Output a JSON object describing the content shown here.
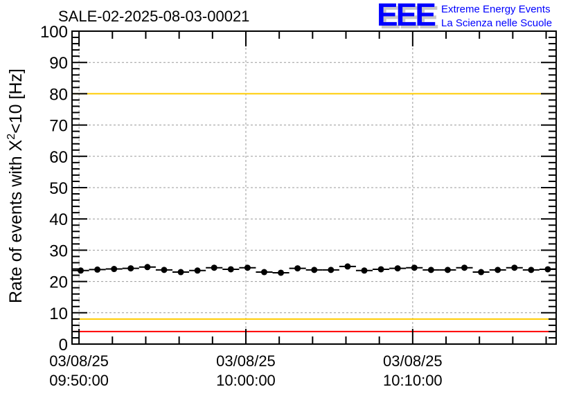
{
  "chart_data": {
    "type": "scatter",
    "title": "SALE-02-2025-08-03-00021",
    "ylabel": "Rate of events with X",
    "ylabel_sup": "2",
    "ylabel_tail": "<10 [Hz]",
    "xlabel": "",
    "ylim": [
      0,
      100
    ],
    "xlim_minutes_from_0950": [
      -0.42,
      28.6
    ],
    "y_ticks": [
      "0",
      "10",
      "20",
      "30",
      "40",
      "50",
      "60",
      "70",
      "80",
      "90",
      "100"
    ],
    "y_tick_values": [
      0,
      10,
      20,
      30,
      40,
      50,
      60,
      70,
      80,
      90,
      100
    ],
    "x_ticks": [
      {
        "minutes": 0,
        "date": "03/08/25",
        "time": "09:50:00"
      },
      {
        "minutes": 10,
        "date": "03/08/25",
        "time": "10:00:00"
      },
      {
        "minutes": 20,
        "date": "03/08/25",
        "time": "10:10:00"
      }
    ],
    "grid": true,
    "bin_width_minutes": 1,
    "x": [
      0.1,
      1.1,
      2.1,
      3.1,
      4.1,
      5.1,
      6.1,
      7.1,
      8.1,
      9.1,
      10.1,
      11.1,
      12.1,
      13.1,
      14.1,
      15.1,
      16.1,
      17.1,
      18.1,
      19.1,
      20.1,
      21.1,
      22.1,
      23.1,
      24.1,
      25.1,
      26.1,
      27.1,
      28.1
    ],
    "values": [
      23.5,
      23.8,
      24.0,
      24.2,
      24.6,
      23.7,
      23.0,
      23.5,
      24.4,
      23.9,
      24.4,
      23.0,
      22.8,
      24.2,
      23.7,
      23.7,
      24.8,
      23.5,
      23.9,
      24.2,
      24.4,
      23.7,
      23.7,
      24.4,
      23.0,
      23.7,
      24.4,
      23.7,
      23.9
    ],
    "reference_lines": [
      {
        "value": 100,
        "color": "#ff0000"
      },
      {
        "value": 80,
        "color": "#ffcc00"
      },
      {
        "value": 8,
        "color": "#ffcc00"
      },
      {
        "value": 4,
        "color": "#ff0000"
      }
    ]
  },
  "logo": {
    "letters": "EEE",
    "line1": "Extreme Energy Events",
    "line2": "La Scienza nelle Scuole",
    "color": "#0000ff"
  }
}
